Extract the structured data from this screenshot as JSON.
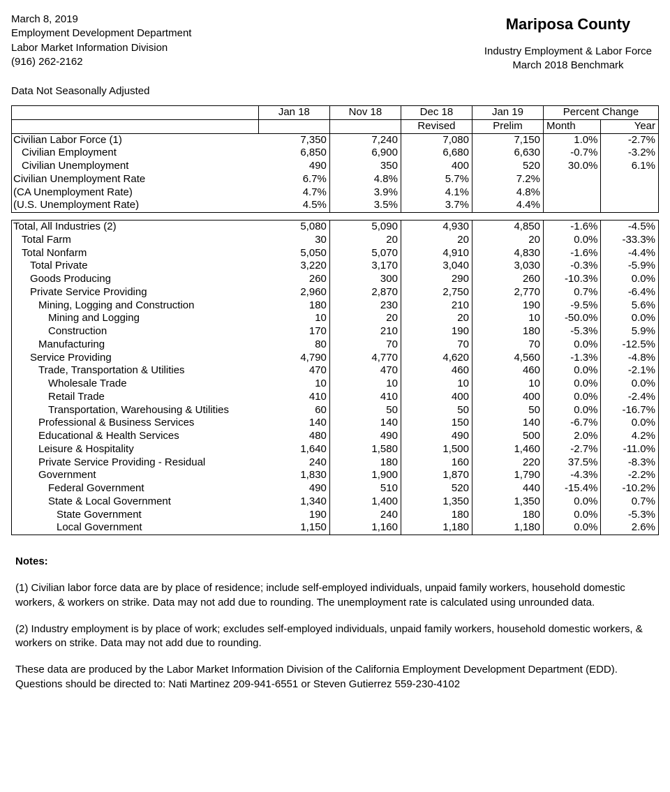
{
  "header": {
    "date": "March 8, 2019",
    "dept": "Employment Development Department",
    "division": "Labor Market Information Division",
    "phone": "(916) 262-2162",
    "county": "Mariposa County",
    "title": "Industry Employment & Labor Force",
    "benchmark": "March 2018 Benchmark",
    "sa_note": "Data Not Seasonally Adjusted"
  },
  "columns": {
    "c1": "Jan 18",
    "c2": "Nov 18",
    "c3": "Dec 18",
    "c3sub": "Revised",
    "c4": "Jan 19",
    "c4sub": "Prelim",
    "pcHead": "Percent Change",
    "pcMonth": "Month",
    "pcYear": "Year"
  },
  "labor": [
    {
      "label": "Civilian Labor Force (1)",
      "ind": 0,
      "v": [
        "7,350",
        "7,240",
        "7,080",
        "7,150",
        "1.0%",
        "-2.7%"
      ]
    },
    {
      "label": "Civilian Employment",
      "ind": 1,
      "v": [
        "6,850",
        "6,900",
        "6,680",
        "6,630",
        "-0.7%",
        "-3.2%"
      ]
    },
    {
      "label": "Civilian Unemployment",
      "ind": 1,
      "v": [
        "490",
        "350",
        "400",
        "520",
        "30.0%",
        "6.1%"
      ]
    },
    {
      "label": "Civilian Unemployment Rate",
      "ind": 0,
      "v": [
        "6.7%",
        "4.8%",
        "5.7%",
        "7.2%",
        "",
        ""
      ]
    },
    {
      "label": "(CA Unemployment Rate)",
      "ind": 0,
      "v": [
        "4.7%",
        "3.9%",
        "4.1%",
        "4.8%",
        "",
        ""
      ]
    },
    {
      "label": "(U.S. Unemployment Rate)",
      "ind": 0,
      "v": [
        "4.5%",
        "3.5%",
        "3.7%",
        "4.4%",
        "",
        ""
      ]
    }
  ],
  "industry": [
    {
      "label": "Total, All Industries (2)",
      "ind": 0,
      "v": [
        "5,080",
        "5,090",
        "4,930",
        "4,850",
        "-1.6%",
        "-4.5%"
      ]
    },
    {
      "label": "Total Farm",
      "ind": 1,
      "v": [
        "30",
        "20",
        "20",
        "20",
        "0.0%",
        "-33.3%"
      ]
    },
    {
      "label": "Total Nonfarm",
      "ind": 1,
      "v": [
        "5,050",
        "5,070",
        "4,910",
        "4,830",
        "-1.6%",
        "-4.4%"
      ]
    },
    {
      "label": "Total Private",
      "ind": 2,
      "v": [
        "3,220",
        "3,170",
        "3,040",
        "3,030",
        "-0.3%",
        "-5.9%"
      ]
    },
    {
      "label": "Goods Producing",
      "ind": 2,
      "v": [
        "260",
        "300",
        "290",
        "260",
        "-10.3%",
        "0.0%"
      ]
    },
    {
      "label": "Private Service Providing",
      "ind": 2,
      "v": [
        "2,960",
        "2,870",
        "2,750",
        "2,770",
        "0.7%",
        "-6.4%"
      ]
    },
    {
      "label": "Mining, Logging and Construction",
      "ind": 3,
      "v": [
        "180",
        "230",
        "210",
        "190",
        "-9.5%",
        "5.6%"
      ]
    },
    {
      "label": "Mining and Logging",
      "ind": 4,
      "v": [
        "10",
        "20",
        "20",
        "10",
        "-50.0%",
        "0.0%"
      ]
    },
    {
      "label": "Construction",
      "ind": 4,
      "v": [
        "170",
        "210",
        "190",
        "180",
        "-5.3%",
        "5.9%"
      ]
    },
    {
      "label": "Manufacturing",
      "ind": 3,
      "v": [
        "80",
        "70",
        "70",
        "70",
        "0.0%",
        "-12.5%"
      ]
    },
    {
      "label": "Service Providing",
      "ind": 2,
      "v": [
        "4,790",
        "4,770",
        "4,620",
        "4,560",
        "-1.3%",
        "-4.8%"
      ]
    },
    {
      "label": "Trade, Transportation & Utilities",
      "ind": 3,
      "v": [
        "470",
        "470",
        "460",
        "460",
        "0.0%",
        "-2.1%"
      ]
    },
    {
      "label": "Wholesale Trade",
      "ind": 4,
      "v": [
        "10",
        "10",
        "10",
        "10",
        "0.0%",
        "0.0%"
      ]
    },
    {
      "label": "Retail Trade",
      "ind": 4,
      "v": [
        "410",
        "410",
        "400",
        "400",
        "0.0%",
        "-2.4%"
      ]
    },
    {
      "label": "Transportation, Warehousing & Utilities",
      "ind": 4,
      "v": [
        "60",
        "50",
        "50",
        "50",
        "0.0%",
        "-16.7%"
      ]
    },
    {
      "label": "Professional & Business Services",
      "ind": 3,
      "v": [
        "140",
        "140",
        "150",
        "140",
        "-6.7%",
        "0.0%"
      ]
    },
    {
      "label": "Educational & Health Services",
      "ind": 3,
      "v": [
        "480",
        "490",
        "490",
        "500",
        "2.0%",
        "4.2%"
      ]
    },
    {
      "label": "Leisure & Hospitality",
      "ind": 3,
      "v": [
        "1,640",
        "1,580",
        "1,500",
        "1,460",
        "-2.7%",
        "-11.0%"
      ]
    },
    {
      "label": "Private Service Providing - Residual",
      "ind": 3,
      "v": [
        "240",
        "180",
        "160",
        "220",
        "37.5%",
        "-8.3%"
      ]
    },
    {
      "label": "Government",
      "ind": 3,
      "v": [
        "1,830",
        "1,900",
        "1,870",
        "1,790",
        "-4.3%",
        "-2.2%"
      ]
    },
    {
      "label": "Federal Government",
      "ind": 4,
      "v": [
        "490",
        "510",
        "520",
        "440",
        "-15.4%",
        "-10.2%"
      ]
    },
    {
      "label": "State & Local Government",
      "ind": 4,
      "v": [
        "1,340",
        "1,400",
        "1,350",
        "1,350",
        "0.0%",
        "0.7%"
      ]
    },
    {
      "label": "State Government",
      "ind": 5,
      "v": [
        "190",
        "240",
        "180",
        "180",
        "0.0%",
        "-5.3%"
      ]
    },
    {
      "label": "Local Government",
      "ind": 5,
      "v": [
        "1,150",
        "1,160",
        "1,180",
        "1,180",
        "0.0%",
        "2.6%"
      ]
    }
  ],
  "notes": {
    "heading": "Notes:",
    "n1": "(1) Civilian labor force data are by place of residence; include self-employed individuals, unpaid family workers, household domestic workers, & workers on strike. Data may not add due to rounding. The unemployment rate is calculated using unrounded data.",
    "n2": "(2) Industry employment is by place of work; excludes self-employed individuals, unpaid family workers, household domestic workers, & workers on strike. Data may not add due to rounding.",
    "n3": "These data are produced by the Labor Market Information Division of the California Employment Development Department (EDD). Questions should be directed to: Nati Martinez 209-941-6551 or Steven Gutierrez 559-230-4102"
  }
}
